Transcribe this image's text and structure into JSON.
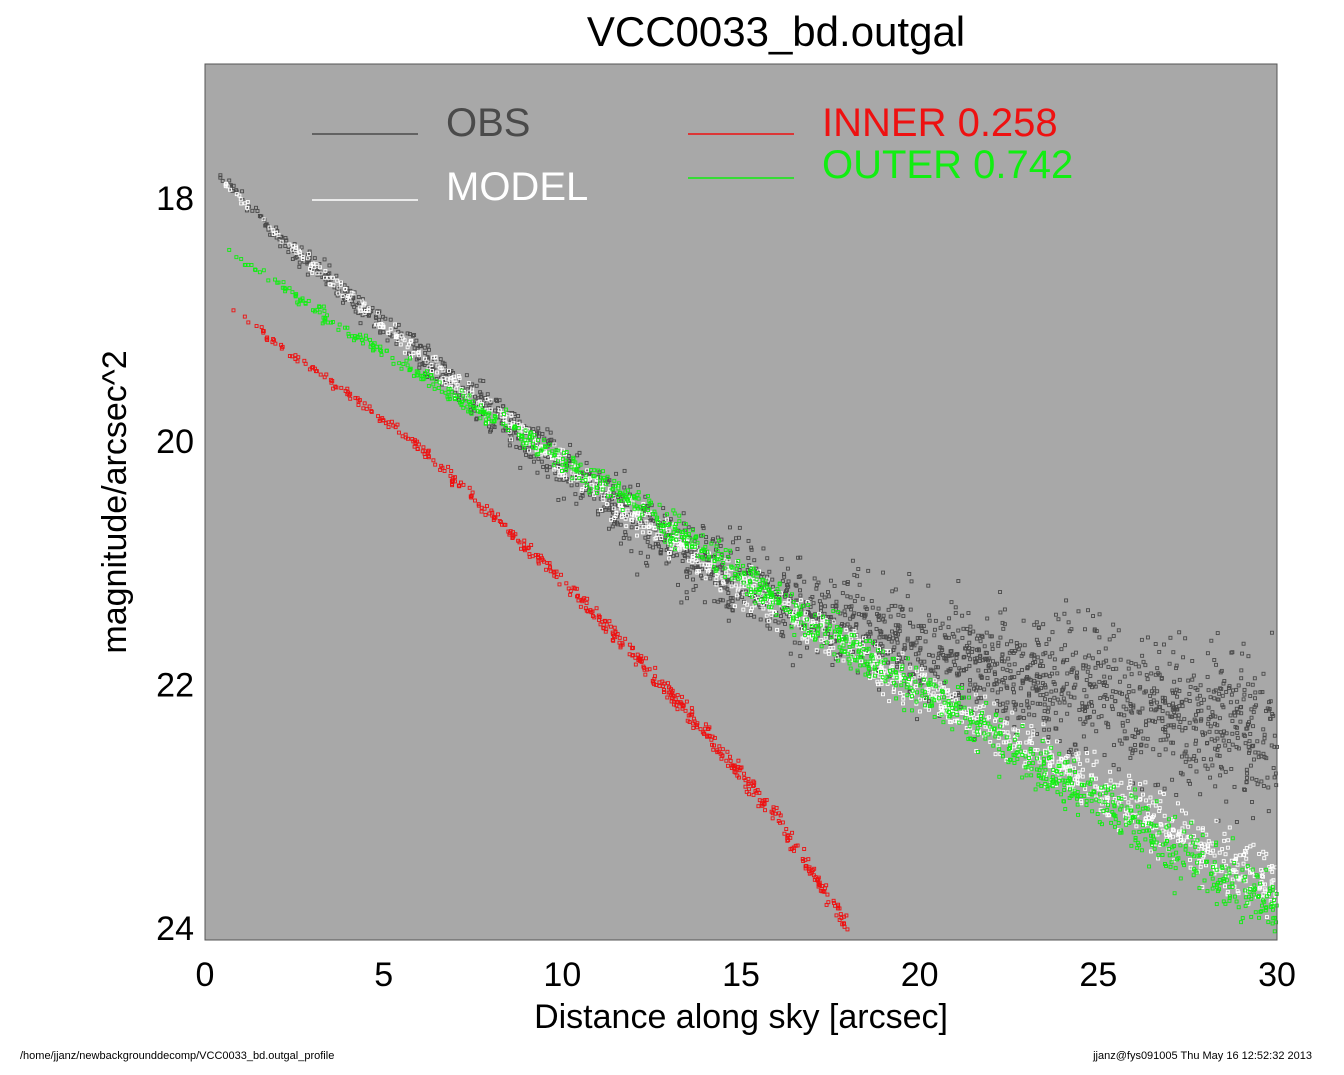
{
  "colors": {
    "background": "#ffffff",
    "plot_background": "#a8a8a8",
    "obs": "#4a4a4a",
    "model": "#ffffff",
    "inner": "#ee1111",
    "outer": "#11ee11",
    "text": "#000000"
  },
  "footer": {
    "left": "/home/jjanz/newbackgrounddecomp/VCC0033_bd.outgal_profile",
    "right": "jjanz@fys091005  Thu May 16 12:52:32 2013"
  },
  "chart_data": {
    "type": "scatter",
    "title": "VCC0033_bd.outgal",
    "xlabel": "Distance along sky [arcsec]",
    "ylabel": "magnitude/arcsec^2",
    "xlim": [
      0,
      30
    ],
    "ylim": [
      24.1,
      16.9
    ],
    "y_inverted": true,
    "x_ticks": [
      0,
      5,
      10,
      15,
      20,
      25,
      30
    ],
    "y_ticks": [
      18,
      20,
      22,
      24
    ],
    "grid": false,
    "legend": {
      "placement": "top",
      "entries": [
        {
          "key": "obs",
          "label": "OBS",
          "color": "#4a4a4a"
        },
        {
          "key": "model",
          "label": "MODEL",
          "color": "#ffffff"
        },
        {
          "key": "inner",
          "label": "INNER  0.258",
          "color": "#ee1111"
        },
        {
          "key": "outer",
          "label": "OUTER  0.742",
          "color": "#11ee11"
        }
      ]
    },
    "series": [
      {
        "name": "OBS",
        "x": [
          0.4,
          2,
          4,
          6,
          8,
          10,
          12,
          14,
          16,
          18,
          20,
          22,
          24,
          26,
          28,
          30
        ],
        "y": [
          17.8,
          18.3,
          18.8,
          19.3,
          19.75,
          20.2,
          20.65,
          21.0,
          21.3,
          21.5,
          21.7,
          21.85,
          22.0,
          22.15,
          22.3,
          22.4
        ]
      },
      {
        "name": "MODEL",
        "x": [
          0.4,
          2,
          4,
          6,
          8,
          10,
          12,
          14,
          16,
          18,
          20,
          22,
          24,
          26,
          28,
          30
        ],
        "y": [
          17.85,
          18.3,
          18.8,
          19.3,
          19.75,
          20.2,
          20.6,
          21.0,
          21.35,
          21.7,
          22.05,
          22.35,
          22.7,
          23.0,
          23.35,
          23.7
        ]
      },
      {
        "name": "INNER  0.258",
        "x": [
          0.4,
          2,
          4,
          6,
          8,
          10,
          12,
          14,
          16,
          18
        ],
        "y": [
          18.8,
          19.2,
          19.6,
          20.05,
          20.6,
          21.15,
          21.75,
          22.4,
          23.1,
          24.0
        ]
      },
      {
        "name": "OUTER  0.742",
        "x": [
          0.4,
          2,
          4,
          6,
          8,
          10,
          12,
          14,
          16,
          18,
          20,
          22,
          24,
          26,
          28,
          30
        ],
        "y": [
          18.4,
          18.7,
          19.1,
          19.45,
          19.8,
          20.15,
          20.5,
          20.9,
          21.3,
          21.7,
          22.05,
          22.4,
          22.8,
          23.15,
          23.5,
          23.85
        ]
      }
    ]
  }
}
